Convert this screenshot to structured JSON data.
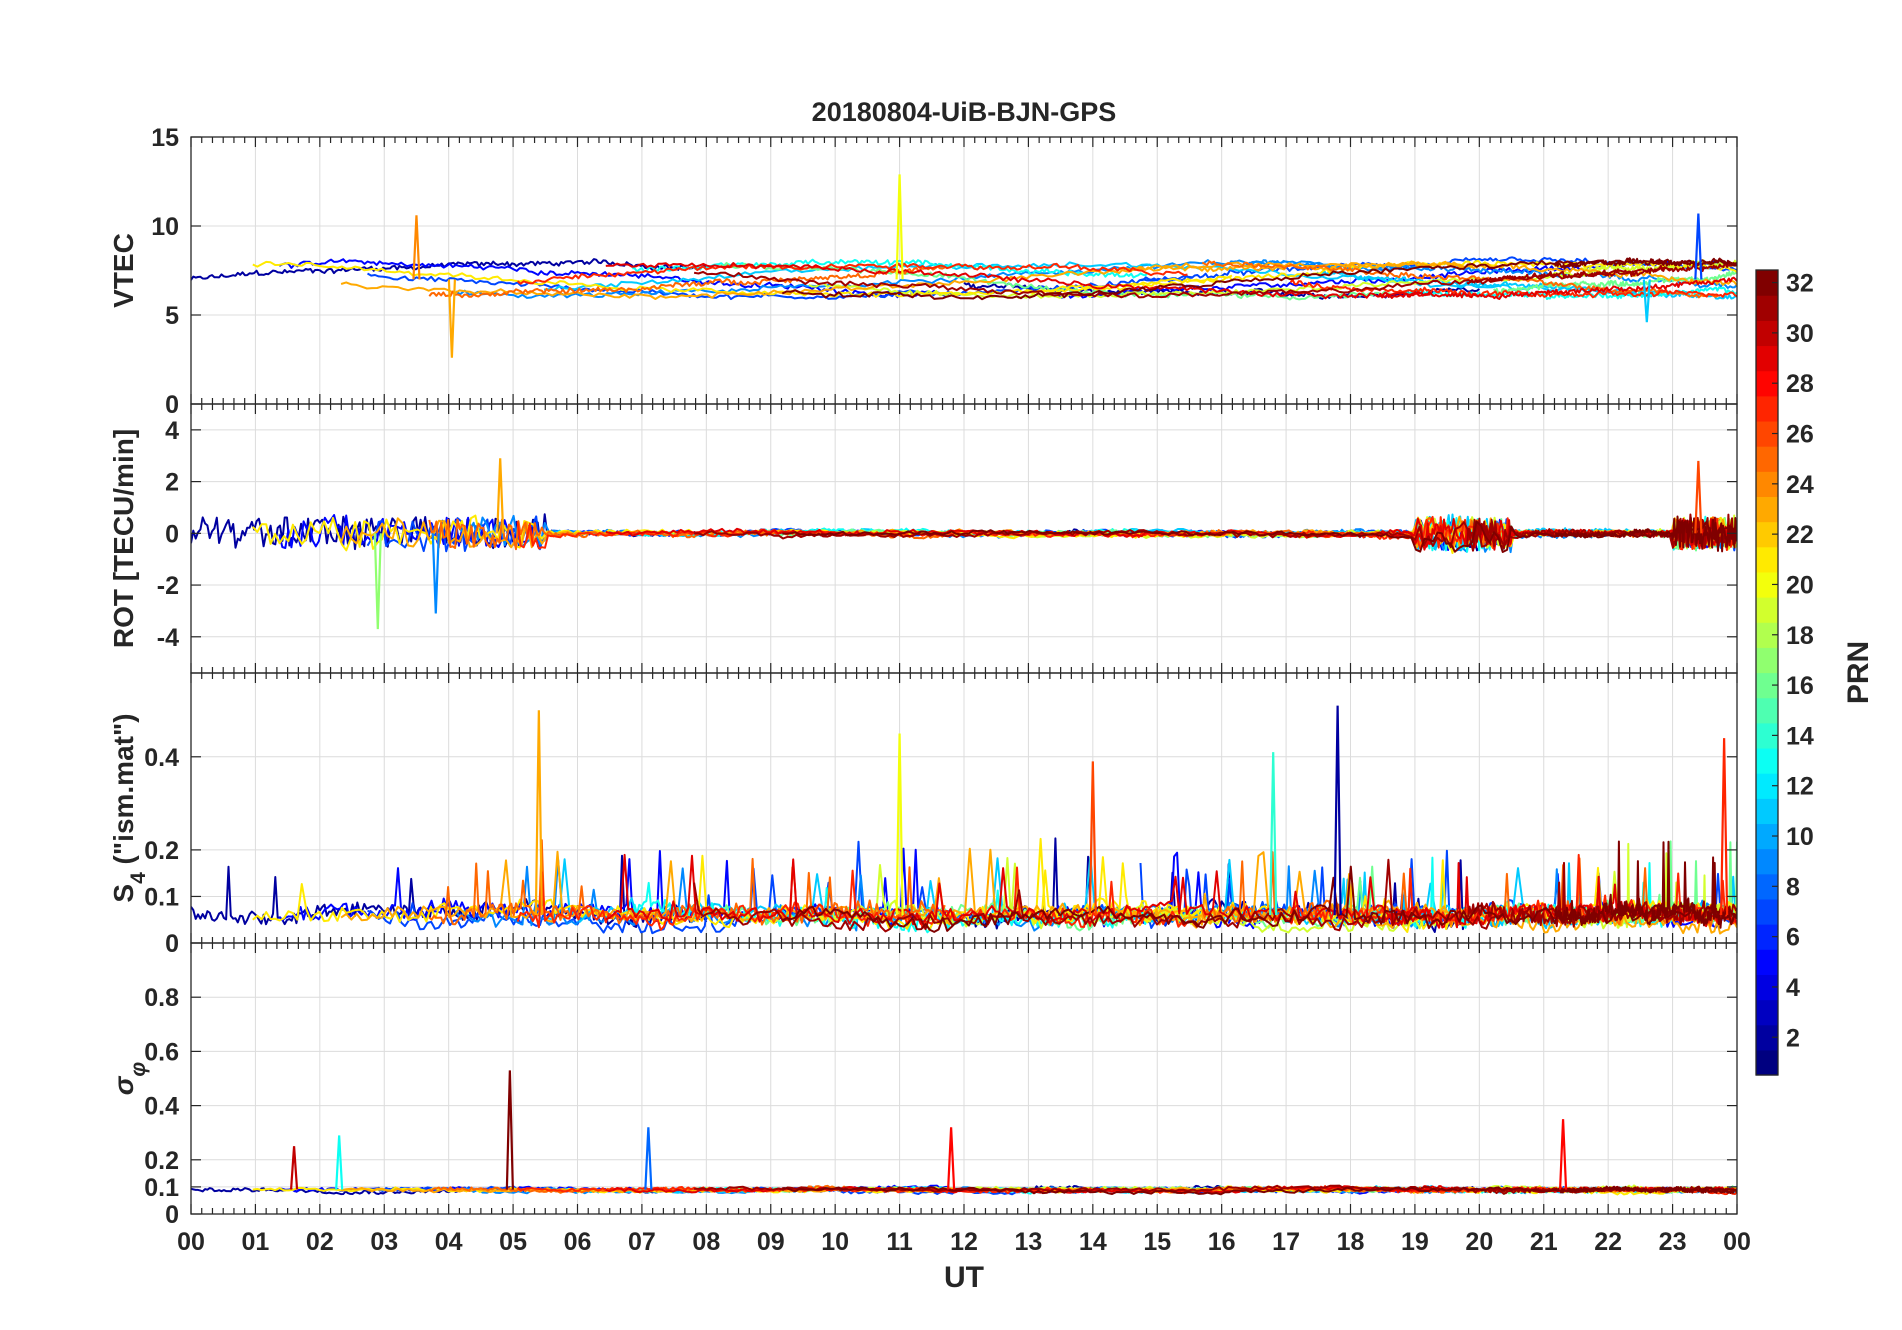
{
  "chart_data": {
    "type": "line",
    "title": "20180804-UiB-BJN-GPS",
    "xlabel": "UT",
    "x_tick_labels": [
      "00",
      "01",
      "02",
      "03",
      "04",
      "05",
      "06",
      "07",
      "08",
      "09",
      "10",
      "11",
      "12",
      "13",
      "14",
      "15",
      "16",
      "17",
      "18",
      "19",
      "20",
      "21",
      "22",
      "23",
      "00"
    ],
    "xlim_hours": [
      0,
      24
    ],
    "grid": true,
    "color_by": "PRN",
    "panels": [
      {
        "id": "vtec",
        "ylabel": "VTEC",
        "ylim": [
          0,
          15
        ],
        "yticks": [
          0,
          5,
          10,
          15
        ],
        "yticklabels": [
          "0",
          "5",
          "10",
          "15"
        ],
        "baseline": 7.0,
        "noise": 0.25,
        "features": [
          {
            "prn": 23,
            "x": 4.05,
            "y": 2.6
          },
          {
            "prn": 24,
            "x": 3.5,
            "y": 10.6
          },
          {
            "prn": 20,
            "x": 11.0,
            "y": 12.9
          },
          {
            "prn": 7,
            "x": 23.4,
            "y": 10.7
          },
          {
            "prn": 11,
            "x": 22.6,
            "y": 4.6
          }
        ]
      },
      {
        "id": "rot",
        "ylabel": "ROT [TECU/min]",
        "ylim": [
          -5.4,
          5.0
        ],
        "yticks": [
          -4,
          -2,
          0,
          2,
          4
        ],
        "yticklabels": [
          "-4",
          "-2",
          "0",
          "2",
          "4"
        ],
        "baseline": 0.0,
        "noise": 0.15,
        "features": [
          {
            "prn": 17,
            "x": 2.9,
            "y": -3.7
          },
          {
            "prn": 9,
            "x": 3.8,
            "y": -3.1
          },
          {
            "prn": 23,
            "x": 4.8,
            "y": 2.9
          },
          {
            "prn": 26,
            "x": 23.4,
            "y": 2.8
          }
        ]
      },
      {
        "id": "s4",
        "ylabel": "S4 (\"ism.mat\")",
        "ylabel_main": "S",
        "ylabel_sub": "4",
        "ylabel_rest": " (\"ism.mat\")",
        "ylim": [
          0,
          0.58
        ],
        "yticks": [
          0,
          0.1,
          0.2,
          0.4
        ],
        "yticklabels": [
          "0",
          "0.1",
          "0.2",
          "0.4"
        ],
        "baseline": 0.06,
        "noise": 0.03,
        "features": [
          {
            "prn": 23,
            "x": 5.4,
            "y": 0.5
          },
          {
            "prn": 2,
            "x": 17.8,
            "y": 0.51
          },
          {
            "prn": 20,
            "x": 11.0,
            "y": 0.45
          },
          {
            "prn": 27,
            "x": 23.8,
            "y": 0.44
          },
          {
            "prn": 26,
            "x": 14.0,
            "y": 0.39
          },
          {
            "prn": 14,
            "x": 16.8,
            "y": 0.41
          }
        ]
      },
      {
        "id": "sigma",
        "ylabel": "σφ",
        "ylabel_main": "σ",
        "ylabel_sub": "φ",
        "ylim": [
          0,
          1.0
        ],
        "yticks": [
          0,
          0.1,
          0.2,
          0.4,
          0.6,
          0.8
        ],
        "yticklabels": [
          "0",
          "0.1",
          "0.2",
          "0.4",
          "0.6",
          "0.8"
        ],
        "baseline": 0.09,
        "noise": 0.012,
        "features": [
          {
            "prn": 32,
            "x": 4.95,
            "y": 0.53
          },
          {
            "prn": 28,
            "x": 21.3,
            "y": 0.35
          },
          {
            "prn": 8,
            "x": 7.1,
            "y": 0.32
          },
          {
            "prn": 28,
            "x": 11.8,
            "y": 0.32
          },
          {
            "prn": 13,
            "x": 2.3,
            "y": 0.29
          },
          {
            "prn": 30,
            "x": 1.6,
            "y": 0.25
          }
        ]
      }
    ],
    "colorbar": {
      "label": "PRN",
      "range": [
        1,
        32
      ],
      "ticks": [
        2,
        4,
        6,
        8,
        10,
        12,
        14,
        16,
        18,
        20,
        22,
        24,
        26,
        28,
        30,
        32
      ],
      "colormap": "jet",
      "location": "right"
    }
  }
}
